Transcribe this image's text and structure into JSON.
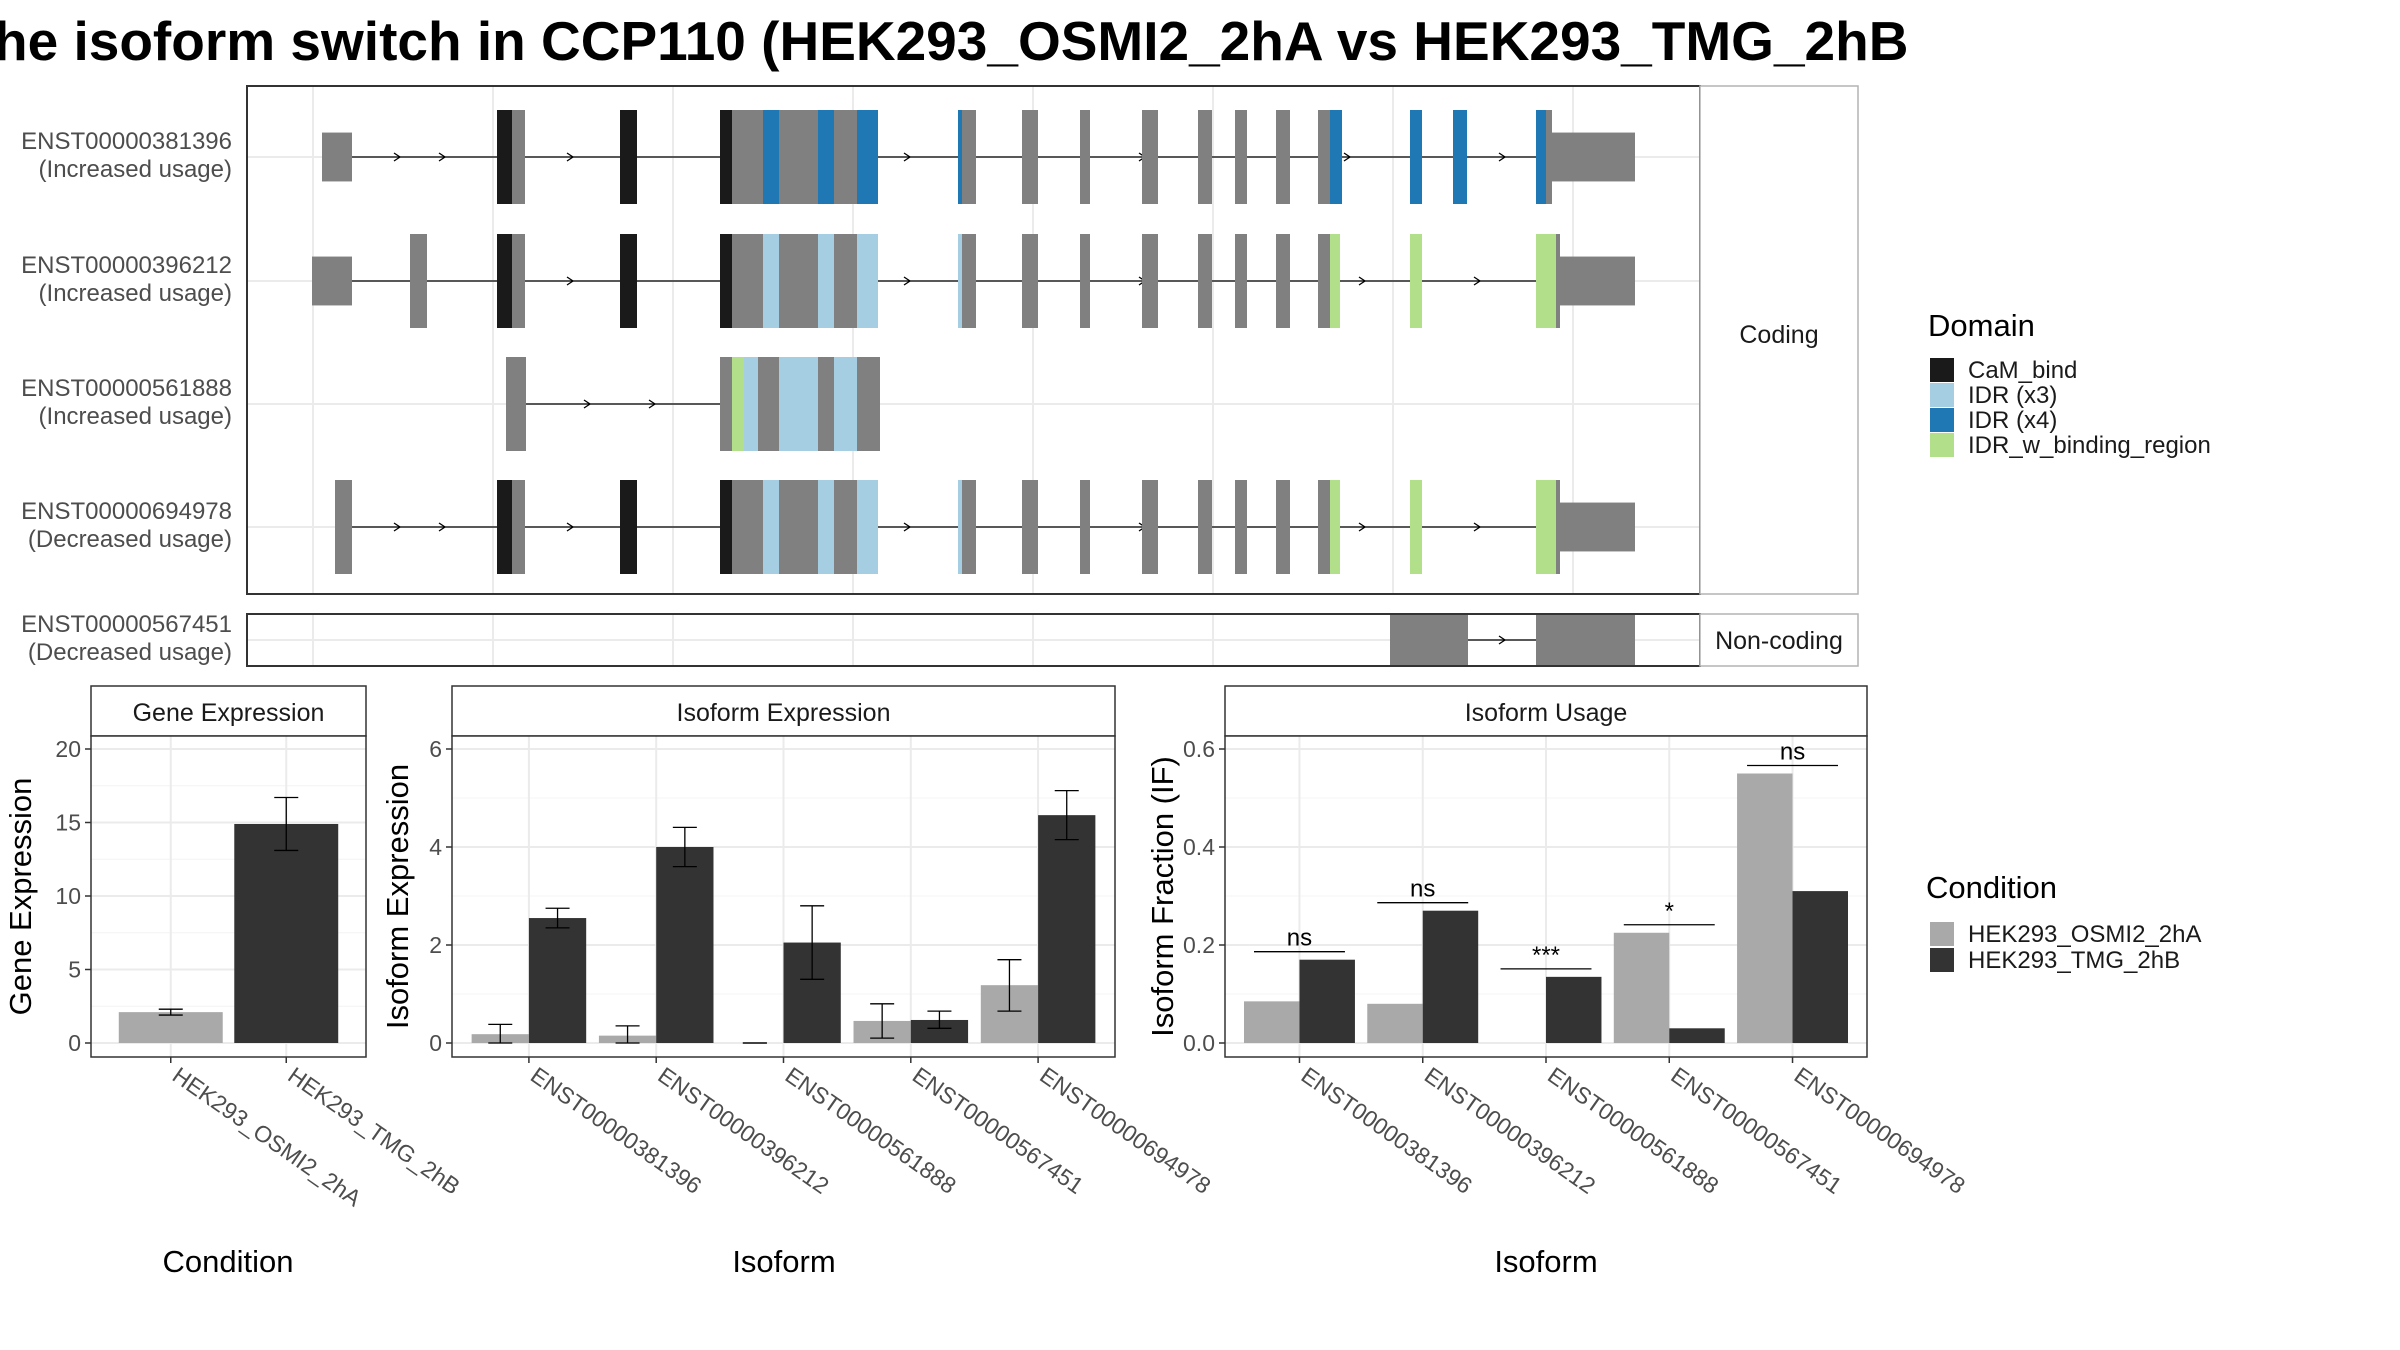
{
  "title": "he isoform switch in CCP110 (HEK293_OSMI2_2hA vs HEK293_TMG_2hB",
  "colors": {
    "exon": "#808080",
    "CaM_bind": "#1a1a1a",
    "IDR (x3)": "#a6cee3",
    "IDR (x4)": "#1f78b4",
    "IDR_w_binding_region": "#b2df8a",
    "cond1": "#a9a9a9",
    "cond2": "#333333"
  },
  "transcripts": [
    {
      "id": "ENST00000381396",
      "usage": "(Increased usage)",
      "group": "Coding"
    },
    {
      "id": "ENST00000396212",
      "usage": "(Increased usage)",
      "group": "Coding"
    },
    {
      "id": "ENST00000561888",
      "usage": "(Increased usage)",
      "group": "Coding"
    },
    {
      "id": "ENST00000694978",
      "usage": "(Decreased usage)",
      "group": "Coding"
    },
    {
      "id": "ENST00000567451",
      "usage": "(Decreased usage)",
      "group": "Non-coding"
    }
  ],
  "groups": {
    "coding": "Coding",
    "noncoding": "Non-coding"
  },
  "legend": {
    "domain_title": "Domain",
    "domains": [
      "CaM_bind",
      "IDR (x3)",
      "IDR (x4)",
      "IDR_w_binding_region"
    ],
    "condition_title": "Condition",
    "conditions": [
      "HEK293_OSMI2_2hA",
      "HEK293_TMG_2hB"
    ]
  },
  "chart_data": [
    {
      "type": "bar",
      "panel": "Gene Expression",
      "categories": [
        "HEK293_OSMI2_2hA",
        "HEK293_TMG_2hB"
      ],
      "values": [
        2.1,
        14.9
      ],
      "errors": [
        [
          1.9,
          2.3
        ],
        [
          13.1,
          16.7
        ]
      ],
      "xlabel": "Condition",
      "ylabel": "Gene Expression",
      "ylim": [
        0,
        20
      ],
      "yticks": [
        0,
        5,
        10,
        15,
        20
      ]
    },
    {
      "type": "bar",
      "panel": "Isoform Expression",
      "categories": [
        "ENST00000381396",
        "ENST00000396212",
        "ENST00000561888",
        "ENST00000567451",
        "ENST00000694978"
      ],
      "series": [
        {
          "name": "HEK293_OSMI2_2hA",
          "values": [
            0.18,
            0.15,
            0.0,
            0.45,
            1.18
          ],
          "errors": [
            [
              0.0,
              0.38
            ],
            [
              0.0,
              0.35
            ],
            [
              0.0,
              0.0
            ],
            [
              0.1,
              0.8
            ],
            [
              0.65,
              1.7
            ]
          ]
        },
        {
          "name": "HEK293_TMG_2hB",
          "values": [
            2.55,
            4.0,
            2.05,
            0.47,
            4.65
          ],
          "errors": [
            [
              2.35,
              2.75
            ],
            [
              3.6,
              4.4
            ],
            [
              1.3,
              2.8
            ],
            [
              0.3,
              0.65
            ],
            [
              4.15,
              5.15
            ]
          ]
        }
      ],
      "xlabel": "Isoform",
      "ylabel": "Isoform Expression",
      "ylim": [
        0,
        6
      ],
      "yticks": [
        0,
        2,
        4,
        6
      ]
    },
    {
      "type": "bar",
      "panel": "Isoform Usage",
      "categories": [
        "ENST00000381396",
        "ENST00000396212",
        "ENST00000561888",
        "ENST00000567451",
        "ENST00000694978"
      ],
      "series": [
        {
          "name": "HEK293_OSMI2_2hA",
          "values": [
            0.085,
            0.08,
            0.0,
            0.225,
            0.55
          ]
        },
        {
          "name": "HEK293_TMG_2hB",
          "values": [
            0.17,
            0.27,
            0.135,
            0.03,
            0.31
          ]
        }
      ],
      "significance": [
        "ns",
        "ns",
        "***",
        "*",
        "ns"
      ],
      "xlabel": "Isoform",
      "ylabel": "Isoform Fraction (IF)",
      "ylim": [
        0,
        0.6
      ],
      "yticks": [
        0.0,
        0.2,
        0.4,
        0.6
      ]
    }
  ]
}
